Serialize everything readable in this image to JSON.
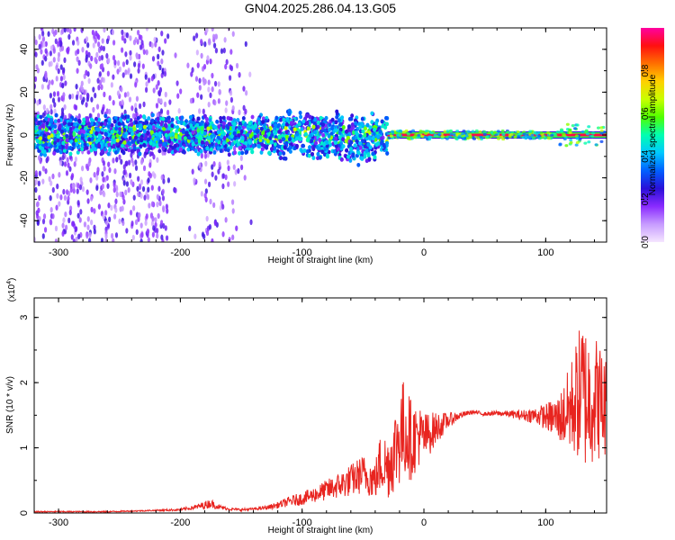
{
  "title": "GN04.2025.286.04.13.G05",
  "colors": {
    "axis": "#000000",
    "snr_line": "#e8241f"
  },
  "chart_data": [
    {
      "type": "heatmap",
      "xlabel": "Height of straight line (km)",
      "ylabel": "Frequency (Hz)",
      "xlim": [
        -320,
        150
      ],
      "ylim": [
        -50,
        50
      ],
      "x_ticks": [
        -300,
        -200,
        -100,
        0,
        100
      ],
      "y_ticks": [
        -40,
        -20,
        0,
        20,
        40
      ],
      "colorbar": {
        "label": "Normalized spectral amplitude",
        "range": [
          0,
          1
        ],
        "ticks": [
          "0.0",
          "0.2",
          "0.4",
          "0.6",
          "0.8"
        ],
        "tick_values": [
          0.0,
          0.2,
          0.4,
          0.6,
          0.8
        ],
        "colormap": [
          "#f5e6ff",
          "#c79cff",
          "#8a2bff",
          "#2a10d8",
          "#0060ff",
          "#00c8ff",
          "#00ffb0",
          "#50ff00",
          "#c8ff00",
          "#ffd000",
          "#ff7000",
          "#ff1010",
          "#ff00a0"
        ]
      },
      "features": [
        {
          "desc": "scattered noise",
          "x": [
            -320,
            -140
          ],
          "freq": [
            -50,
            50
          ],
          "amplitude": 0.15
        },
        {
          "desc": "broad band",
          "x": [
            -320,
            -30
          ],
          "freq": [
            -10,
            10
          ],
          "amplitude": 0.4
        },
        {
          "desc": "narrow carrier",
          "x": [
            -30,
            150
          ],
          "freq": [
            -1,
            1
          ],
          "amplitude": 0.95
        }
      ]
    },
    {
      "type": "line",
      "xlabel": "Height of straight line (km)",
      "ylabel": "SNR (10 * v/v)",
      "y_multiplier": "(x10",
      "y_multiplier_exp": "4",
      "y_multiplier_close": ")",
      "xlim": [
        -320,
        150
      ],
      "ylim": [
        0,
        3.3
      ],
      "x_ticks": [
        -300,
        -200,
        -100,
        0,
        100
      ],
      "y_ticks": [
        0,
        1,
        2,
        3
      ],
      "series": [
        {
          "x": [
            -320,
            -300,
            -280,
            -260,
            -240,
            -220,
            -200,
            -190,
            -180,
            -175,
            -170,
            -160,
            -150,
            -140,
            -130,
            -120,
            -110,
            -100,
            -90,
            -80,
            -70,
            -60,
            -50,
            -40,
            -35,
            -30,
            -25,
            -20,
            -15,
            -10,
            -5,
            0,
            10,
            20,
            30,
            40,
            50,
            60,
            70,
            80,
            90,
            100,
            110,
            115,
            120,
            125,
            130,
            135,
            140,
            145,
            150
          ],
          "y": [
            0.02,
            0.02,
            0.02,
            0.02,
            0.03,
            0.04,
            0.05,
            0.08,
            0.12,
            0.15,
            0.1,
            0.06,
            0.05,
            0.06,
            0.08,
            0.12,
            0.18,
            0.22,
            0.28,
            0.35,
            0.42,
            0.5,
            0.6,
            0.5,
            0.8,
            0.7,
            0.9,
            1.2,
            1.3,
            1.1,
            1.2,
            1.15,
            1.3,
            1.42,
            1.5,
            1.55,
            1.52,
            1.53,
            1.52,
            1.5,
            1.5,
            1.48,
            1.45,
            1.5,
            1.6,
            1.75,
            1.85,
            1.75,
            1.8,
            1.7,
            1.6
          ],
          "noise_amplitude": [
            0.01,
            0.01,
            0.01,
            0.01,
            0.01,
            0.01,
            0.02,
            0.03,
            0.06,
            0.07,
            0.04,
            0.02,
            0.02,
            0.02,
            0.03,
            0.05,
            0.08,
            0.1,
            0.12,
            0.16,
            0.2,
            0.25,
            0.3,
            0.3,
            0.5,
            0.5,
            0.6,
            0.8,
            0.8,
            0.6,
            0.5,
            0.4,
            0.25,
            0.12,
            0.05,
            0.03,
            0.03,
            0.04,
            0.05,
            0.08,
            0.12,
            0.2,
            0.35,
            0.5,
            0.7,
            0.9,
            1.2,
            1.1,
            1.0,
            0.9,
            0.8
          ]
        }
      ]
    }
  ]
}
